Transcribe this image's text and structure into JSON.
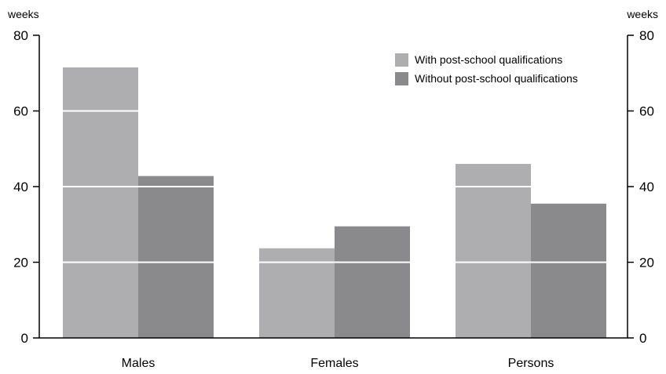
{
  "chart_data": {
    "type": "bar",
    "title": "",
    "xlabel": "",
    "ylabel": "weeks",
    "ylabel_right": "weeks",
    "categories": [
      "Males",
      "Females",
      "Persons"
    ],
    "series": [
      {
        "name": "With post-school qualifications",
        "values": [
          71.5,
          23.7,
          46.0
        ],
        "color": "#aeaeb0"
      },
      {
        "name": "Without post-school qualifications",
        "values": [
          42.8,
          29.5,
          35.5
        ],
        "color": "#8a8a8c"
      }
    ],
    "ylim": [
      0,
      80
    ],
    "yticks": [
      0,
      20,
      40,
      60,
      80
    ],
    "grid": "white lines inside bars",
    "legend_position": "top-right",
    "secondary_y_axis": true
  }
}
